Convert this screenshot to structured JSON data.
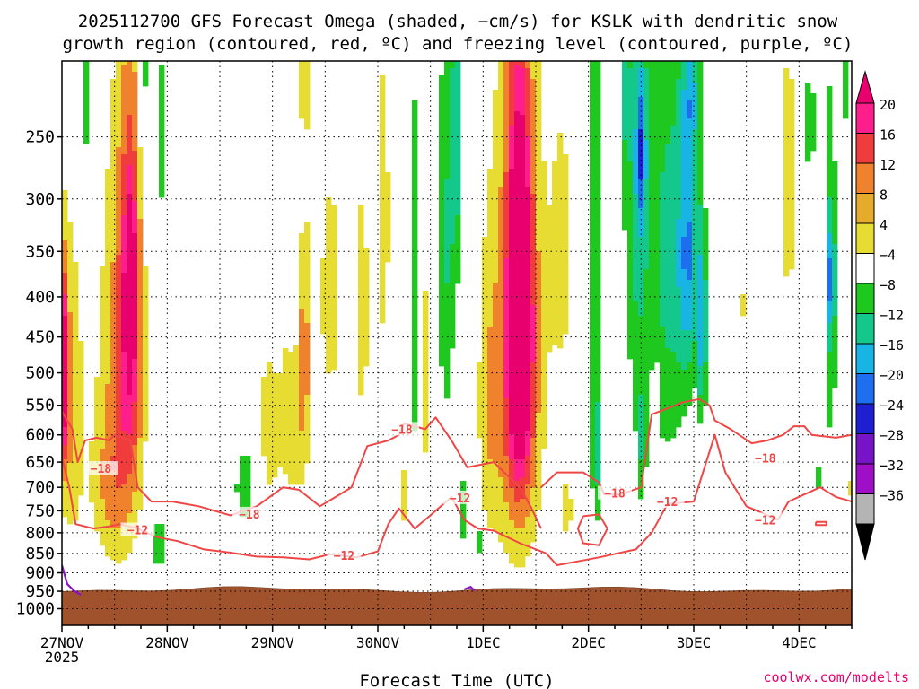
{
  "chart_data": {
    "type": "heatmap",
    "title_line1": "2025112700 GFS Forecast Omega (shaded, −cm/s) for KSLK with dendritic snow",
    "title_line2": "growth region (contoured, red, ºC) and freezing level (contoured, purple, ºC)",
    "xlabel": "Forecast Time (UTC)",
    "credit": "coolwx.com/modelts",
    "x_ticks": [
      {
        "day": 0,
        "label": "27NOV",
        "sublabel": "2025"
      },
      {
        "day": 1,
        "label": "28NOV"
      },
      {
        "day": 2,
        "label": "29NOV"
      },
      {
        "day": 3,
        "label": "30NOV"
      },
      {
        "day": 4,
        "label": "1DEC"
      },
      {
        "day": 5,
        "label": "2DEC"
      },
      {
        "day": 6,
        "label": "3DEC"
      },
      {
        "day": 7,
        "label": "4DEC"
      }
    ],
    "xlim_days": [
      0,
      7.5
    ],
    "y_levels": [
      1000,
      950,
      900,
      850,
      800,
      750,
      700,
      650,
      600,
      550,
      500,
      450,
      400,
      350,
      300,
      250
    ],
    "ylim_hpa": [
      1050,
      200
    ],
    "surface_pressure_hpa": 945,
    "colorbar": {
      "labels": [
        "20",
        "16",
        "12",
        "8",
        "4",
        "−4",
        "−8",
        "−12",
        "−16",
        "−20",
        "−24",
        "−28",
        "−32",
        "−36"
      ],
      "colors": [
        "#ff1e8c",
        "#f03c3c",
        "#f0822d",
        "#e6aa2d",
        "#e6dc32",
        "#ffffff",
        "#1ec81e",
        "#14c88c",
        "#19b4e6",
        "#1e6ef0",
        "#1e1ed2",
        "#7814c8",
        "#a00fc8",
        "#b4b4b4"
      ],
      "top_color": "#e8006e",
      "bottom_color": "#000000"
    },
    "omega_blobs": [
      {
        "t": 0.02,
        "p": 500,
        "dt": 0.04,
        "dp": 130,
        "v": 22
      },
      {
        "t": 0.08,
        "p": 560,
        "dt": 0.12,
        "dp": 260,
        "v": 8
      },
      {
        "t": 0.55,
        "p": 530,
        "dt": 0.22,
        "dp": 330,
        "v": 9
      },
      {
        "t": 0.65,
        "p": 410,
        "dt": 0.11,
        "dp": 220,
        "v": 16
      },
      {
        "t": 0.65,
        "p": 390,
        "dt": 0.04,
        "dp": 70,
        "v": 21
      },
      {
        "t": 0.45,
        "p": 700,
        "dt": 0.2,
        "dp": 140,
        "v": 5
      },
      {
        "t": 0.92,
        "p": 830,
        "dt": 0.035,
        "dp": 60,
        "v": -14
      },
      {
        "t": 0.78,
        "p": 200,
        "dt": 0.05,
        "dp": 120,
        "v": -7
      },
      {
        "t": 0.95,
        "p": 250,
        "dt": 0.04,
        "dp": 60,
        "v": -8
      },
      {
        "t": 0.22,
        "p": 210,
        "dt": 0.06,
        "dp": 80,
        "v": -7
      },
      {
        "t": 1.75,
        "p": 700,
        "dt": 0.12,
        "dp": 100,
        "v": -7
      },
      {
        "t": 1.95,
        "p": 600,
        "dt": 0.14,
        "dp": 220,
        "v": 5
      },
      {
        "t": 2.2,
        "p": 560,
        "dt": 0.13,
        "dp": 200,
        "v": 6
      },
      {
        "t": 2.3,
        "p": 470,
        "dt": 0.05,
        "dp": 170,
        "v": 8
      },
      {
        "t": 2.2,
        "p": 320,
        "dt": 0.05,
        "dp": 120,
        "v": -7
      },
      {
        "t": 2.55,
        "p": 400,
        "dt": 0.16,
        "dp": 220,
        "v": 5
      },
      {
        "t": 2.3,
        "p": 210,
        "dt": 0.05,
        "dp": 50,
        "v": 5
      },
      {
        "t": 2.85,
        "p": 420,
        "dt": 0.06,
        "dp": 150,
        "v": 7
      },
      {
        "t": 3.05,
        "p": 320,
        "dt": 0.1,
        "dp": 240,
        "v": 5
      },
      {
        "t": 3.35,
        "p": 420,
        "dt": 0.06,
        "dp": 240,
        "v": -8
      },
      {
        "t": 3.45,
        "p": 500,
        "dt": 0.06,
        "dp": 320,
        "v": 5
      },
      {
        "t": 3.65,
        "p": 350,
        "dt": 0.08,
        "dp": 230,
        "v": -8
      },
      {
        "t": 3.75,
        "p": 250,
        "dt": 0.06,
        "dp": 130,
        "v": -9
      },
      {
        "t": 3.8,
        "p": 750,
        "dt": 0.04,
        "dp": 80,
        "v": -8
      },
      {
        "t": 3.95,
        "p": 820,
        "dt": 0.02,
        "dp": 60,
        "v": -10
      },
      {
        "t": 3.25,
        "p": 720,
        "dt": 0.09,
        "dp": 120,
        "v": 5
      },
      {
        "t": 4.05,
        "p": 560,
        "dt": 0.1,
        "dp": 220,
        "v": 5
      },
      {
        "t": 4.3,
        "p": 500,
        "dt": 0.28,
        "dp": 360,
        "v": 8
      },
      {
        "t": 4.35,
        "p": 440,
        "dt": 0.16,
        "dp": 300,
        "v": 13
      },
      {
        "t": 4.35,
        "p": 430,
        "dt": 0.1,
        "dp": 200,
        "v": 18
      },
      {
        "t": 4.33,
        "p": 410,
        "dt": 0.06,
        "dp": 110,
        "v": 23
      },
      {
        "t": 4.75,
        "p": 350,
        "dt": 0.13,
        "dp": 180,
        "v": 5
      },
      {
        "t": 4.8,
        "p": 750,
        "dt": 0.07,
        "dp": 110,
        "v": 5
      },
      {
        "t": 5.07,
        "p": 350,
        "dt": 0.05,
        "dp": 350,
        "v": -8
      },
      {
        "t": 5.07,
        "p": 650,
        "dt": 0.03,
        "dp": 120,
        "v": -9
      },
      {
        "t": 5.15,
        "p": 200,
        "dt": 0.05,
        "dp": 60,
        "v": 5
      },
      {
        "t": 5.35,
        "p": 220,
        "dt": 0.05,
        "dp": 50,
        "v": -7
      },
      {
        "t": 5.45,
        "p": 320,
        "dt": 0.12,
        "dp": 200,
        "v": -8
      },
      {
        "t": 5.5,
        "p": 260,
        "dt": 0.05,
        "dp": 60,
        "v": -13
      },
      {
        "t": 5.5,
        "p": 620,
        "dt": 0.05,
        "dp": 120,
        "v": -7
      },
      {
        "t": 5.75,
        "p": 360,
        "dt": 0.22,
        "dp": 280,
        "v": -9
      },
      {
        "t": 5.95,
        "p": 350,
        "dt": 0.1,
        "dp": 140,
        "v": -13
      },
      {
        "t": 6.08,
        "p": 440,
        "dt": 0.04,
        "dp": 120,
        "v": -15
      },
      {
        "t": 5.65,
        "p": 520,
        "dt": 0.05,
        "dp": 40,
        "v": 5
      },
      {
        "t": 5.98,
        "p": 220,
        "dt": 0.08,
        "dp": 40,
        "v": -8
      },
      {
        "t": 6.45,
        "p": 410,
        "dt": 0.05,
        "dp": 40,
        "v": 5
      },
      {
        "t": 6.9,
        "p": 290,
        "dt": 0.08,
        "dp": 150,
        "v": 6
      },
      {
        "t": 7.1,
        "p": 240,
        "dt": 0.06,
        "dp": 40,
        "v": -7
      },
      {
        "t": 7.3,
        "p": 400,
        "dt": 0.06,
        "dp": 230,
        "v": -8
      },
      {
        "t": 7.3,
        "p": 380,
        "dt": 0.04,
        "dp": 60,
        "v": -11
      },
      {
        "t": 7.45,
        "p": 210,
        "dt": 0.03,
        "dp": 40,
        "v": -7
      },
      {
        "t": 6.75,
        "p": 700,
        "dt": 0.03,
        "dp": 20,
        "v": 5
      },
      {
        "t": 7.2,
        "p": 680,
        "dt": 0.03,
        "dp": 40,
        "v": -7
      },
      {
        "t": 7.48,
        "p": 700,
        "dt": 0.03,
        "dp": 60,
        "v": 5
      }
    ],
    "dgz_contours": [
      {
        "level": -18,
        "label": "−18",
        "points": [
          [
            0.0,
            560
          ],
          [
            0.1,
            590
          ],
          [
            0.15,
            650
          ],
          [
            0.22,
            610
          ],
          [
            0.33,
            605
          ],
          [
            0.45,
            610
          ],
          [
            0.5,
            600
          ],
          [
            0.65,
            610
          ],
          [
            0.72,
            700
          ],
          [
            0.85,
            730
          ],
          [
            1.05,
            730
          ],
          [
            1.3,
            740
          ],
          [
            1.6,
            760
          ],
          [
            1.85,
            740
          ],
          [
            2.1,
            700
          ],
          [
            2.25,
            705
          ],
          [
            2.45,
            740
          ],
          [
            2.6,
            720
          ],
          [
            2.75,
            700
          ],
          [
            2.9,
            620
          ],
          [
            3.1,
            610
          ],
          [
            3.2,
            600
          ],
          [
            3.25,
            580
          ],
          [
            3.45,
            590
          ],
          [
            3.55,
            570
          ],
          [
            3.7,
            610
          ],
          [
            3.85,
            660
          ],
          [
            4.1,
            650
          ],
          [
            4.25,
            680
          ],
          [
            4.35,
            700
          ],
          [
            4.45,
            740
          ],
          [
            4.55,
            790
          ]
        ]
      },
      {
        "level": -12,
        "label": "−12",
        "points": [
          [
            0.0,
            640
          ],
          [
            0.07,
            700
          ],
          [
            0.13,
            780
          ],
          [
            0.3,
            790
          ],
          [
            0.45,
            785
          ],
          [
            0.55,
            780
          ],
          [
            0.72,
            790
          ],
          [
            0.9,
            810
          ],
          [
            1.1,
            820
          ],
          [
            1.35,
            840
          ],
          [
            1.6,
            848
          ],
          [
            1.85,
            858
          ],
          [
            2.1,
            860
          ],
          [
            2.35,
            865
          ],
          [
            2.55,
            852
          ],
          [
            2.8,
            860
          ],
          [
            3.0,
            845
          ],
          [
            3.1,
            780
          ],
          [
            3.2,
            745
          ],
          [
            3.35,
            790
          ],
          [
            3.5,
            760
          ],
          [
            3.7,
            720
          ],
          [
            3.82,
            770
          ],
          [
            3.95,
            790
          ],
          [
            4.1,
            795
          ],
          [
            4.35,
            825
          ],
          [
            4.6,
            850
          ],
          [
            4.7,
            880
          ],
          [
            4.9,
            870
          ],
          [
            5.1,
            860
          ],
          [
            5.45,
            840
          ],
          [
            5.6,
            800
          ],
          [
            5.75,
            735
          ],
          [
            6.0,
            730
          ],
          [
            6.2,
            600
          ],
          [
            6.3,
            670
          ],
          [
            6.5,
            740
          ],
          [
            6.8,
            770
          ],
          [
            6.9,
            730
          ],
          [
            7.2,
            700
          ],
          [
            7.35,
            720
          ],
          [
            7.5,
            730
          ]
        ]
      },
      {
        "level": -18,
        "label": "−18",
        "points": [
          [
            4.55,
            700
          ],
          [
            4.7,
            670
          ],
          [
            4.95,
            670
          ],
          [
            5.1,
            690
          ],
          [
            5.15,
            715
          ],
          [
            5.3,
            715
          ],
          [
            5.5,
            700
          ],
          [
            5.6,
            565
          ],
          [
            5.75,
            555
          ],
          [
            5.9,
            545
          ],
          [
            6.05,
            540
          ],
          [
            6.15,
            550
          ],
          [
            6.2,
            575
          ],
          [
            6.35,
            590
          ],
          [
            6.55,
            615
          ],
          [
            6.7,
            610
          ],
          [
            6.85,
            600
          ],
          [
            6.95,
            585
          ],
          [
            7.05,
            585
          ],
          [
            7.12,
            600
          ],
          [
            7.35,
            605
          ],
          [
            7.5,
            600
          ]
        ]
      }
    ],
    "dgz_labels": [
      {
        "label": "−18",
        "t": 0.37,
        "p": 662
      },
      {
        "label": "−12",
        "t": 0.72,
        "p": 793
      },
      {
        "label": "−18",
        "t": 1.78,
        "p": 757
      },
      {
        "label": "−12",
        "t": 2.68,
        "p": 855
      },
      {
        "label": "−18",
        "t": 3.23,
        "p": 590
      },
      {
        "label": "−12",
        "t": 3.78,
        "p": 722
      },
      {
        "label": "−18",
        "t": 5.25,
        "p": 712
      },
      {
        "label": "−12",
        "t": 5.75,
        "p": 730
      },
      {
        "label": "−18",
        "t": 6.68,
        "p": 642
      },
      {
        "label": "−12",
        "t": 6.68,
        "p": 770
      }
    ],
    "dgz_closed_contours": [
      {
        "points": [
          [
            4.95,
            762
          ],
          [
            5.1,
            758
          ],
          [
            5.18,
            790
          ],
          [
            5.1,
            830
          ],
          [
            4.95,
            825
          ],
          [
            4.9,
            790
          ],
          [
            4.95,
            762
          ]
        ]
      },
      {
        "points": [
          [
            7.16,
            775
          ],
          [
            7.26,
            775
          ],
          [
            7.26,
            782
          ],
          [
            7.16,
            782
          ],
          [
            7.16,
            775
          ]
        ]
      }
    ],
    "freezing_level_contours": [
      {
        "level": 0,
        "points": [
          [
            0.0,
            880
          ],
          [
            0.05,
            930
          ],
          [
            0.12,
            950
          ],
          [
            0.18,
            960
          ]
        ]
      },
      {
        "level": 0,
        "points": [
          [
            3.82,
            945
          ],
          [
            3.88,
            938
          ],
          [
            3.92,
            948
          ]
        ]
      }
    ]
  }
}
